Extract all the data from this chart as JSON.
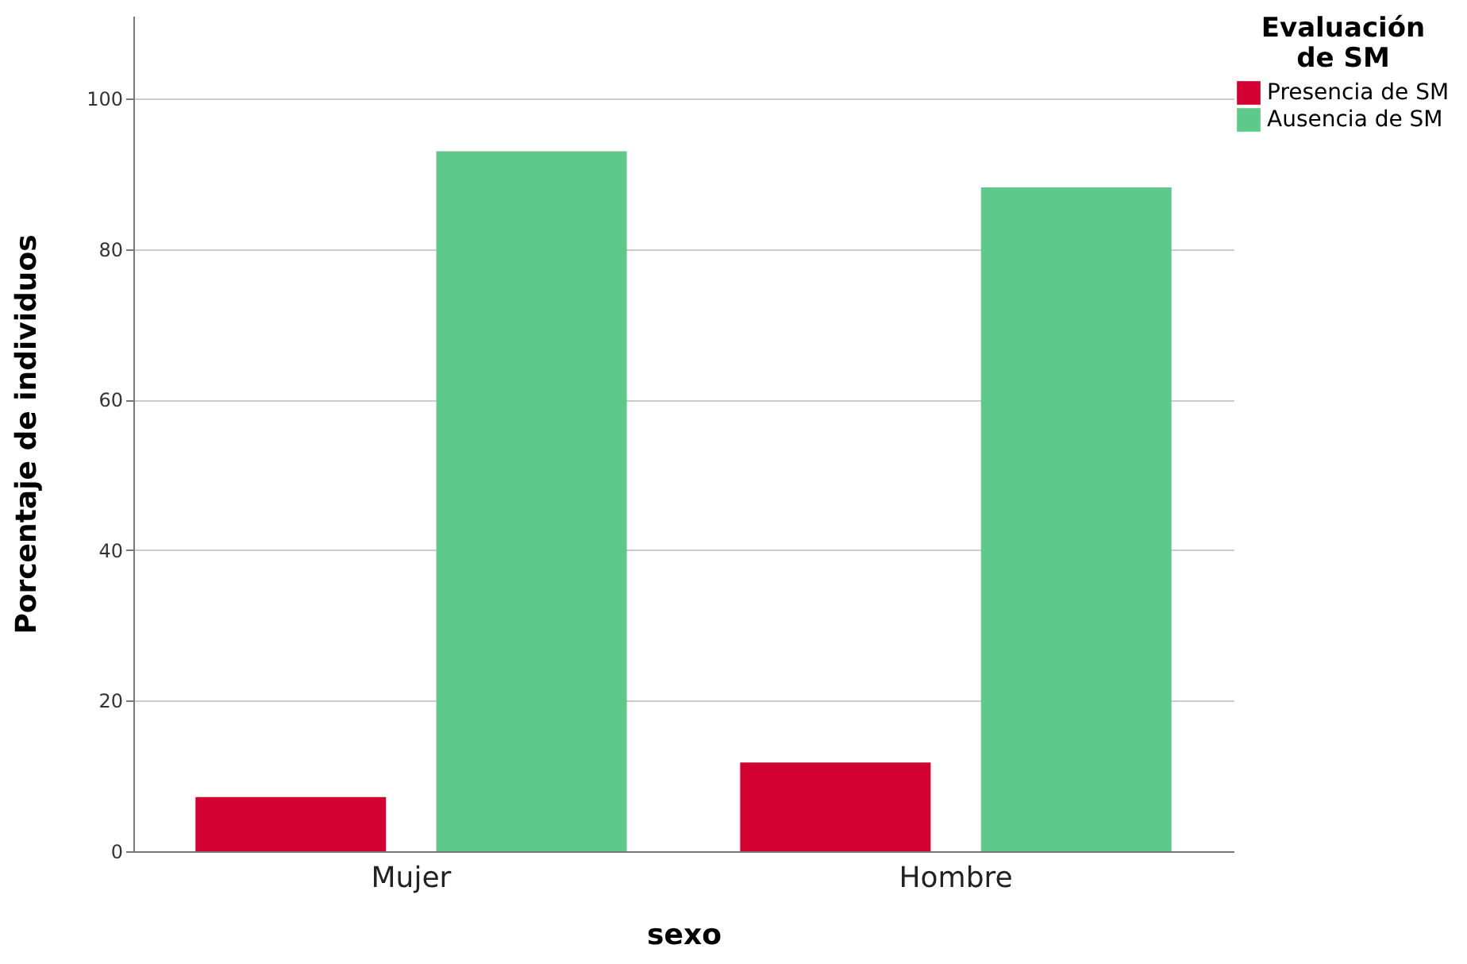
{
  "chart_data": {
    "type": "bar",
    "xlabel": "sexo",
    "ylabel": "Porcentaje de individuos",
    "legend_title": "Evaluación de SM",
    "categories": [
      "Mujer",
      "Hombre"
    ],
    "series": [
      {
        "name": "Presencia de SM",
        "color": "#d50032",
        "values": [
          7.2,
          11.8
        ]
      },
      {
        "name": "Ausencia de SM",
        "color": "#5ec98a",
        "values": [
          93.0,
          88.2
        ]
      }
    ],
    "ylim": [
      0,
      111
    ],
    "yticks": [
      0,
      20,
      40,
      60,
      80,
      100
    ],
    "grid": "y",
    "legend": "top right"
  }
}
